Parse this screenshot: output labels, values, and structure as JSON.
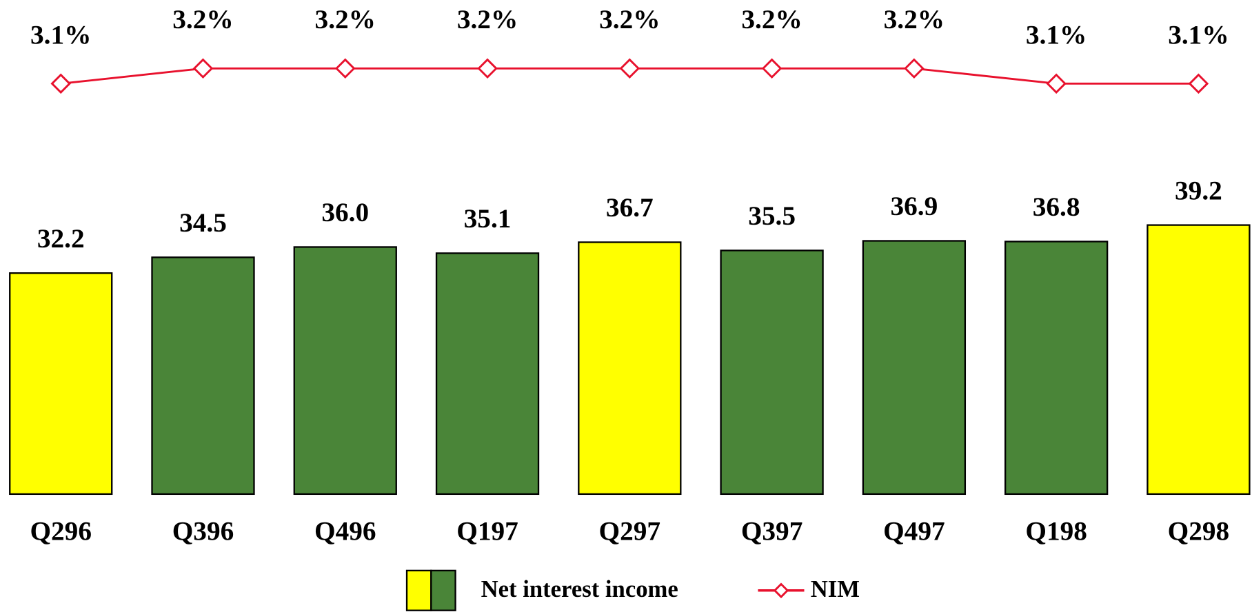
{
  "chart_data": {
    "type": "bar",
    "categories": [
      "Q296",
      "Q396",
      "Q496",
      "Q197",
      "Q297",
      "Q397",
      "Q497",
      "Q198",
      "Q298"
    ],
    "series": [
      {
        "name": "Net interest income",
        "type": "bar",
        "colors": [
          "#ffff00",
          "#4a8538",
          "#4a8538",
          "#4a8538",
          "#ffff00",
          "#4a8538",
          "#4a8538",
          "#4a8538",
          "#ffff00"
        ],
        "values": [
          32.2,
          34.5,
          36.0,
          35.1,
          36.7,
          35.5,
          36.9,
          36.8,
          39.2
        ],
        "value_labels": [
          "32.2",
          "34.5",
          "36.0",
          "35.1",
          "36.7",
          "35.5",
          "36.9",
          "36.8",
          "39.2"
        ]
      },
      {
        "name": "NIM",
        "type": "line",
        "color": "#e8112d",
        "axis": "y2",
        "values": [
          3.1,
          3.2,
          3.2,
          3.2,
          3.2,
          3.2,
          3.2,
          3.1,
          3.1
        ],
        "value_labels": [
          "3.1%",
          "3.2%",
          "3.2%",
          "3.2%",
          "3.2%",
          "3.2%",
          "3.2%",
          "3.1%",
          "3.1%"
        ]
      }
    ],
    "ylim": [
      0,
      72
    ],
    "y2lim": [
      0.4,
      3.65
    ],
    "legend": "bottom"
  }
}
